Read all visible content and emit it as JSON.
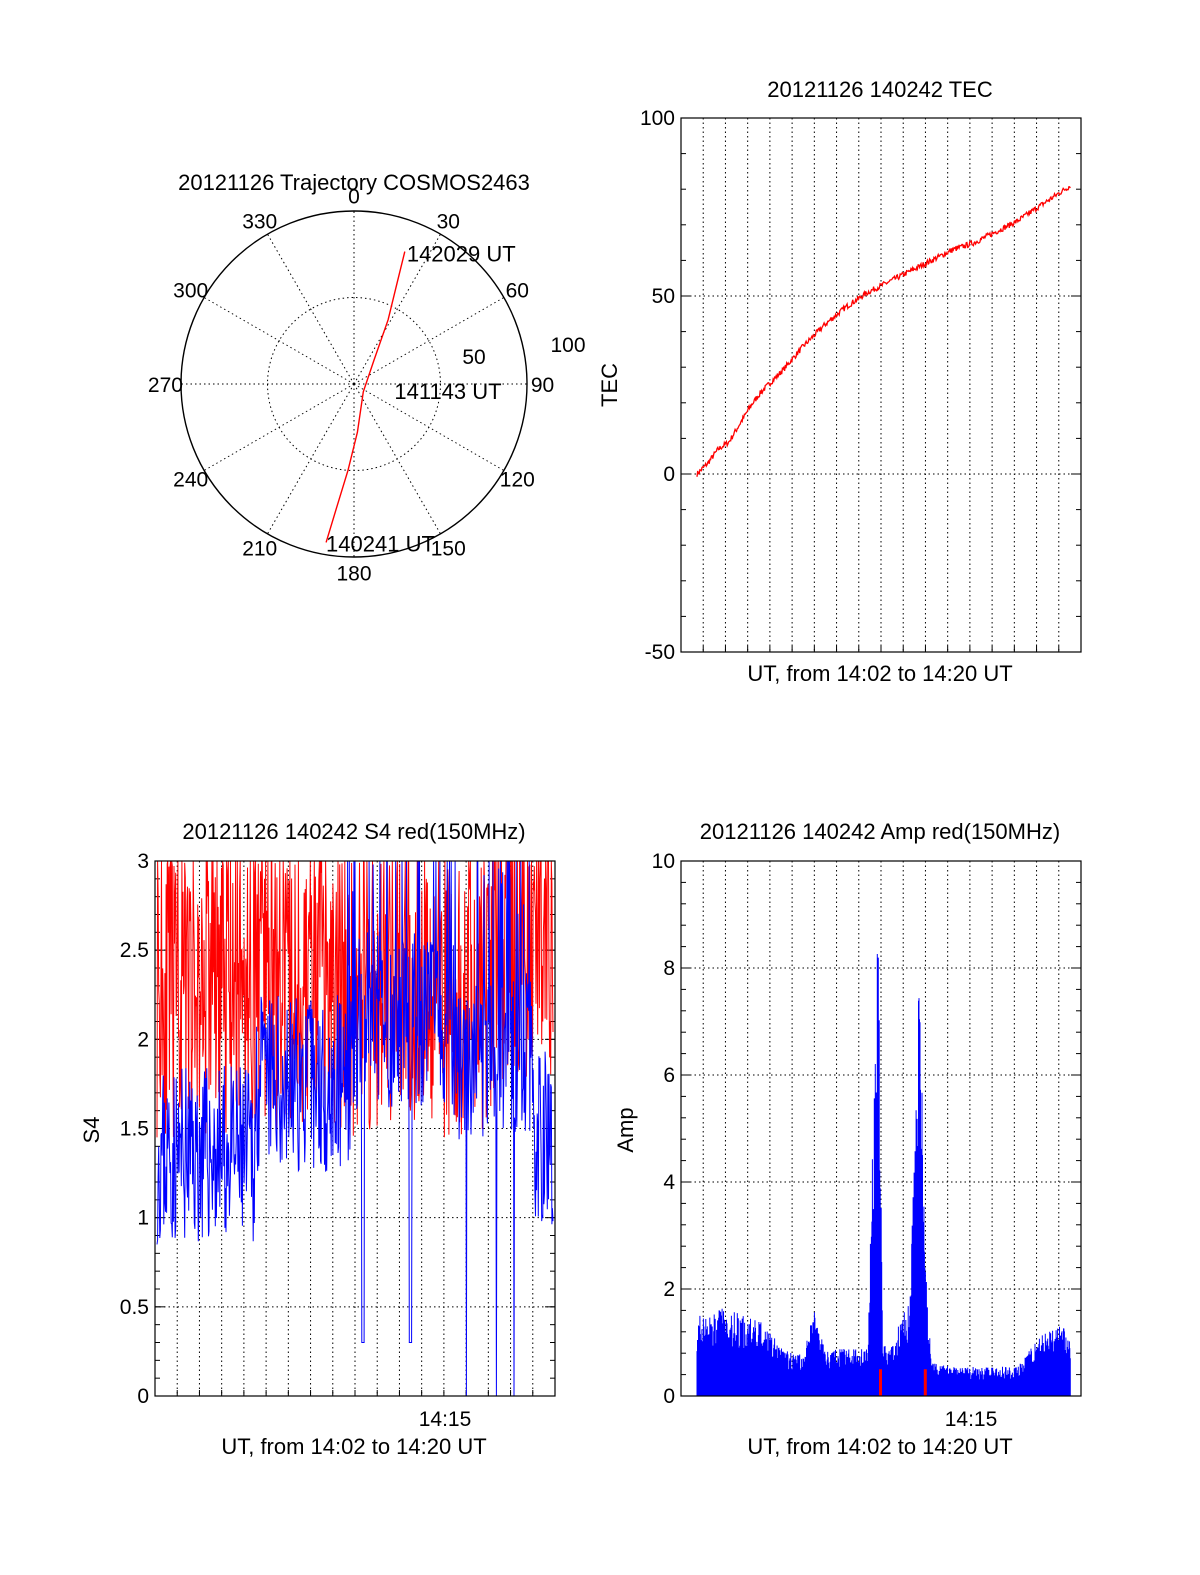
{
  "chart_data": [
    {
      "type": "polar",
      "id": "trajectory",
      "title": "20121126 Trajectory COSMOS2463",
      "azimuth_labels": [
        "0",
        "30",
        "60",
        "90",
        "120",
        "150",
        "180",
        "210",
        "240",
        "270",
        "300",
        "330"
      ],
      "radial_labels": [
        "50",
        "100"
      ],
      "series": [
        {
          "color": "#ff0000",
          "points": [
            {
              "az": 190,
              "el_r": 93
            },
            {
              "az": 188,
              "el_r": 72
            },
            {
              "az": 184,
              "el_r": 50
            },
            {
              "az": 176,
              "el_r": 28
            },
            {
              "az": 130,
              "el_r": 7
            },
            {
              "az": 40,
              "el_r": 18
            },
            {
              "az": 28,
              "el_r": 42
            },
            {
              "az": 23,
              "el_r": 64
            },
            {
              "az": 21,
              "el_r": 82
            }
          ]
        }
      ],
      "annotations": [
        {
          "text": "142029 UT",
          "az": 21,
          "el_r": 82
        },
        {
          "text": "141143 UT",
          "az": 90,
          "el_r": 6
        },
        {
          "text": "140241 UT",
          "az": 190,
          "el_r": 93
        }
      ]
    },
    {
      "type": "line",
      "id": "tec",
      "title": "20121126 140242 TEC",
      "xlabel": "UT, from 14:02 to 14:20 UT",
      "ylabel": "TEC",
      "ylim": [
        -50,
        100
      ],
      "yticks": [
        "-50",
        "0",
        "50",
        "100"
      ],
      "grid": true,
      "series": [
        {
          "color": "#ff0000",
          "x": [
            0,
            0.5,
            1,
            1.5,
            2,
            2.5,
            3,
            4,
            5,
            6,
            7,
            8,
            9,
            10,
            11,
            12,
            13,
            14,
            15,
            16,
            17,
            17.5
          ],
          "y": [
            0,
            3,
            7,
            9,
            14,
            19,
            23,
            29,
            36,
            42,
            47,
            51,
            54,
            57,
            60,
            63,
            65,
            68,
            71,
            75,
            79,
            81
          ]
        }
      ]
    },
    {
      "type": "line",
      "id": "s4",
      "title": "20121126 140242 S4 red(150MHz)",
      "xlabel": "UT, from 14:02 to 14:20 UT",
      "ylabel": "S4",
      "xtick_labels": [
        "14:15"
      ],
      "ylim": [
        0,
        3
      ],
      "yticks": [
        "0",
        "0.5",
        "1",
        "1.5",
        "2",
        "2.5",
        "3"
      ],
      "grid": true,
      "series": [
        {
          "color": "#ff0000",
          "value_range": [
            1.4,
            3.0
          ],
          "mean": 2.25
        },
        {
          "color": "#0000ff",
          "value_range": [
            0,
            3.0
          ],
          "mean": 1.6
        }
      ]
    },
    {
      "type": "bar",
      "id": "amp",
      "title": "20121126 140242 Amp red(150MHz)",
      "xlabel": "UT, from 14:02 to 14:20 UT",
      "ylabel": "Amp",
      "xtick_labels": [
        "14:15"
      ],
      "ylim": [
        0,
        10
      ],
      "yticks": [
        "0",
        "2",
        "4",
        "6",
        "8",
        "10"
      ],
      "grid": true,
      "series": [
        {
          "color": "#0000ff",
          "x": [
            0,
            1,
            2,
            3,
            4,
            5,
            5.5,
            6,
            7,
            8,
            8.5,
            8.7,
            9,
            10,
            10.4,
            10.8,
            11,
            12,
            13,
            14,
            15,
            16,
            17,
            17.5
          ],
          "y": [
            1.4,
            1.5,
            1.4,
            1.3,
            0.8,
            0.7,
            1.6,
            0.8,
            0.8,
            0.8,
            8.4,
            0.9,
            0.8,
            1.7,
            7.4,
            1.5,
            0.6,
            0.5,
            0.5,
            0.5,
            0.5,
            1.0,
            1.2,
            1.1
          ]
        },
        {
          "color": "#ff0000",
          "spikes_x": [
            8.6,
            10.7
          ],
          "spike_height": 0.5
        }
      ]
    }
  ]
}
